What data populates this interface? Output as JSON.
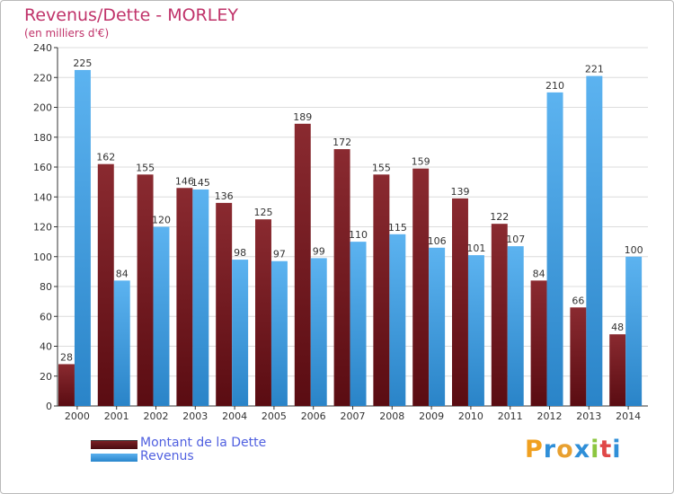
{
  "header": {
    "title": "Revenus/Dette - MORLEY",
    "subtitle": "(en milliers d'€)"
  },
  "chart_data": {
    "type": "bar",
    "title": "Revenus/Dette - MORLEY",
    "ylabel": "(en milliers d'€)",
    "xlabel": "",
    "ylim": [
      0,
      240
    ],
    "yticks": [
      0,
      20,
      40,
      60,
      80,
      100,
      120,
      140,
      160,
      180,
      200,
      220,
      240
    ],
    "grid": true,
    "categories": [
      "2000",
      "2001",
      "2002",
      "2003",
      "2004",
      "2005",
      "2006",
      "2007",
      "2008",
      "2009",
      "2010",
      "2011",
      "2012",
      "2013",
      "2014"
    ],
    "series": [
      {
        "name": "Montant de la Dette",
        "color": "#7a1f24",
        "values": [
          28,
          162,
          155,
          146,
          136,
          125,
          189,
          172,
          155,
          159,
          139,
          122,
          84,
          66,
          48
        ]
      },
      {
        "name": "Revenus",
        "color": "#3a9be0",
        "values": [
          225,
          84,
          120,
          145,
          98,
          97,
          99,
          110,
          115,
          106,
          101,
          107,
          210,
          221,
          100
        ]
      }
    ],
    "legend_position": "bottom-left"
  },
  "legend": {
    "items": [
      {
        "label": "Montant de la Dette",
        "color": "#6e1419"
      },
      {
        "label": "Revenus",
        "color": "#3a9be0"
      }
    ]
  },
  "logo": {
    "letters": [
      "P",
      "r",
      "o",
      "x",
      "i",
      "t",
      "i"
    ],
    "colors": [
      "#f0a020",
      "#2f8fd8",
      "#e8a030",
      "#2f8fd8",
      "#8cc63f",
      "#e04848",
      "#2f8fd8"
    ]
  }
}
